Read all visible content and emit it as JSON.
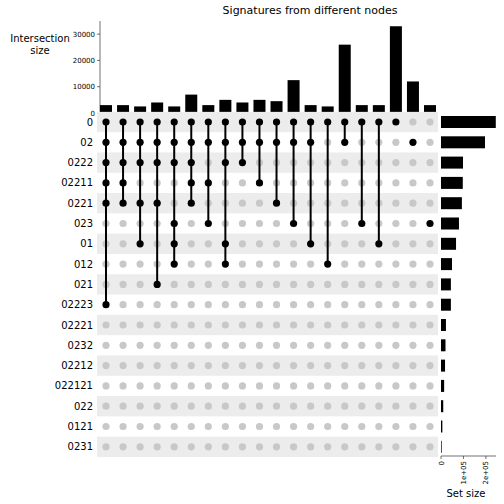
{
  "chart_data": {
    "type": "upset",
    "title": "Signatures from different nodes",
    "ylabel": "Intersection size",
    "xlabel": "Set size",
    "ylim": [
      0,
      35000
    ],
    "yticks": [
      0,
      10000,
      20000,
      30000
    ],
    "xlim": [
      0,
      245000
    ],
    "xticks": [
      0,
      {
        "value": 100000,
        "label": "1e+05"
      },
      {
        "value": 200000,
        "label": "2e+05"
      }
    ],
    "color": "#000000",
    "sets": [
      {
        "name": "0",
        "size": 244000
      },
      {
        "name": "02",
        "size": 196000
      },
      {
        "name": "0222",
        "size": 98000
      },
      {
        "name": "02211",
        "size": 97000
      },
      {
        "name": "0221",
        "size": 93000
      },
      {
        "name": "023",
        "size": 80000
      },
      {
        "name": "01",
        "size": 67000
      },
      {
        "name": "012",
        "size": 49000
      },
      {
        "name": "021",
        "size": 44000
      },
      {
        "name": "02223",
        "size": 44000
      },
      {
        "name": "02221",
        "size": 22000
      },
      {
        "name": "0232",
        "size": 20000
      },
      {
        "name": "02212",
        "size": 18000
      },
      {
        "name": "022121",
        "size": 14000
      },
      {
        "name": "022",
        "size": 10000
      },
      {
        "name": "0121",
        "size": 6000
      },
      {
        "name": "0231",
        "size": 3000
      }
    ],
    "intersections": [
      {
        "sets": [
          "0",
          "02",
          "0222",
          "02211",
          "0221",
          "02223"
        ],
        "size": 3000
      },
      {
        "sets": [
          "0",
          "02",
          "0222",
          "02211",
          "0221"
        ],
        "size": 3000
      },
      {
        "sets": [
          "0",
          "02",
          "0222",
          "0221",
          "01"
        ],
        "size": 2500
      },
      {
        "sets": [
          "0",
          "02",
          "0222",
          "0221",
          "021"
        ],
        "size": 4000
      },
      {
        "sets": [
          "0",
          "02",
          "0222",
          "023",
          "01",
          "012"
        ],
        "size": 2500
      },
      {
        "sets": [
          "0",
          "02",
          "0222",
          "02211",
          "0221"
        ],
        "size": 7000
      },
      {
        "sets": [
          "0",
          "02",
          "02211",
          "023"
        ],
        "size": 3000
      },
      {
        "sets": [
          "0",
          "02",
          "0222",
          "01",
          "012"
        ],
        "size": 5000
      },
      {
        "sets": [
          "0",
          "02",
          "0222"
        ],
        "size": 4000
      },
      {
        "sets": [
          "0",
          "02",
          "02211"
        ],
        "size": 5000
      },
      {
        "sets": [
          "0",
          "02",
          "0221"
        ],
        "size": 4500
      },
      {
        "sets": [
          "0",
          "02",
          "023"
        ],
        "size": 12500
      },
      {
        "sets": [
          "0",
          "02",
          "01"
        ],
        "size": 3000
      },
      {
        "sets": [
          "0",
          "012"
        ],
        "size": 2500
      },
      {
        "sets": [
          "0",
          "02"
        ],
        "size": 26000
      },
      {
        "sets": [
          "0",
          "023"
        ],
        "size": 3000
      },
      {
        "sets": [
          "0",
          "01"
        ],
        "size": 3000
      },
      {
        "sets": [
          "0"
        ],
        "size": 33000
      },
      {
        "sets": [
          "02"
        ],
        "size": 12000
      },
      {
        "sets": [
          "023"
        ],
        "size": 3000
      }
    ]
  }
}
